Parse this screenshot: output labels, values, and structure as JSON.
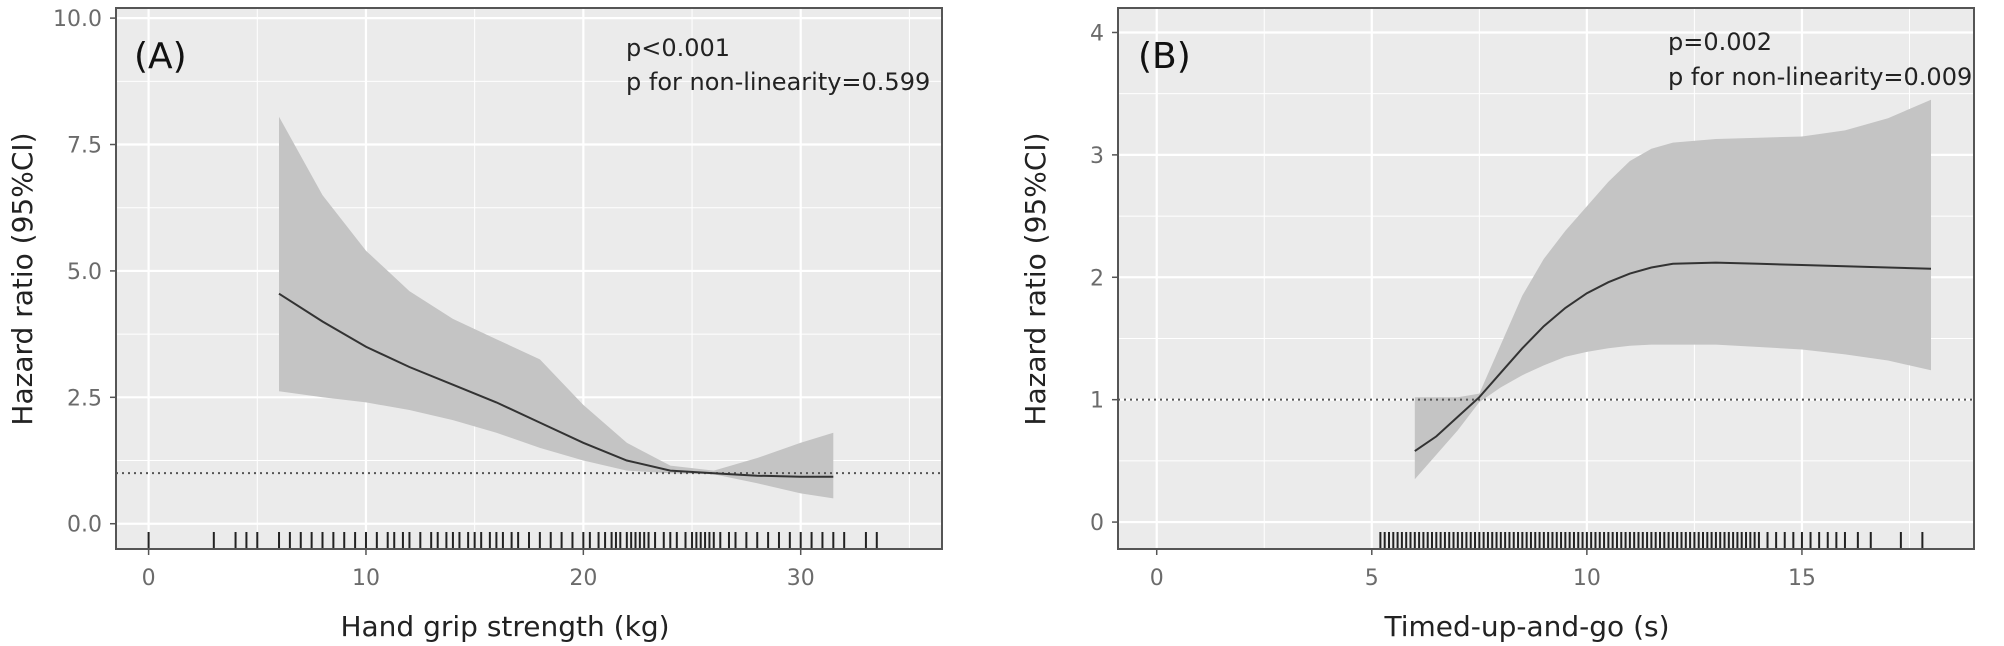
{
  "colors": {
    "panel_bg": "#ebebeb",
    "grid": "#ffffff",
    "ci_band": "#c4c4c4",
    "curve": "#333333",
    "reference_line": "#555555",
    "rug": "#222222",
    "border": "#555555"
  },
  "chart_data": [
    {
      "type": "line",
      "panel_label": "(A)",
      "annotation": [
        "p<0.001",
        "p for non-linearity=0.599"
      ],
      "xlabel": "Hand grip strength (kg)",
      "ylabel": "Hazard ratio (95%CI)",
      "xlim": [
        -1.5,
        36.5
      ],
      "ylim": [
        -0.5,
        10.2
      ],
      "xticks": [
        0,
        10,
        20,
        30
      ],
      "xtick_labels": [
        "0",
        "10",
        "20",
        "30"
      ],
      "yticks": [
        0,
        2.5,
        5,
        7.5,
        10
      ],
      "ytick_labels": [
        "0.0",
        "2.5",
        "5.0",
        "7.5",
        "10.0"
      ],
      "reference_line_y": 1,
      "grid": true,
      "series": [
        {
          "x": [
            6,
            8,
            10,
            12,
            14,
            16,
            18,
            20,
            22,
            24,
            26,
            28,
            30,
            31.5
          ],
          "y": [
            4.55,
            4.0,
            3.5,
            3.1,
            2.75,
            2.4,
            2.0,
            1.6,
            1.25,
            1.05,
            1.0,
            0.95,
            0.93,
            0.93
          ],
          "lower": [
            2.62,
            2.5,
            2.4,
            2.25,
            2.05,
            1.8,
            1.5,
            1.25,
            1.05,
            1.0,
            0.98,
            0.8,
            0.6,
            0.5
          ],
          "upper": [
            8.05,
            6.5,
            5.4,
            4.6,
            4.05,
            3.65,
            3.25,
            2.35,
            1.6,
            1.15,
            1.05,
            1.3,
            1.6,
            1.8
          ]
        }
      ],
      "rug_x": [
        0,
        3,
        4,
        4.5,
        5,
        6,
        6.5,
        7,
        7.5,
        8,
        8.5,
        9,
        9.5,
        10,
        10.5,
        11,
        11.3,
        11.7,
        12,
        12.5,
        13,
        13.3,
        13.7,
        14,
        14.3,
        14.7,
        15,
        15.3,
        15.7,
        16,
        16.3,
        16.7,
        17,
        17.5,
        18,
        18.5,
        19,
        19.5,
        20,
        20.3,
        20.7,
        21,
        21.3,
        21.5,
        21.7,
        22,
        22.2,
        22.4,
        22.6,
        22.8,
        23,
        23.3,
        23.7,
        24,
        24.3,
        24.7,
        25,
        25.2,
        25.4,
        25.6,
        25.8,
        26,
        26.3,
        26.7,
        27,
        27.5,
        28,
        28.5,
        29,
        29.5,
        30,
        30.5,
        31,
        31.5,
        32,
        33,
        33.5
      ]
    },
    {
      "type": "line",
      "panel_label": "(B)",
      "annotation": [
        "p=0.002",
        "p for non-linearity=0.009"
      ],
      "xlabel": "Timed-up-and-go (s)",
      "ylabel": "Hazard ratio (95%CI)",
      "xlim": [
        -0.9,
        19
      ],
      "ylim": [
        -0.22,
        4.2
      ],
      "xticks": [
        0,
        5,
        10,
        15
      ],
      "xtick_labels": [
        "0",
        "5",
        "10",
        "15"
      ],
      "yticks": [
        0,
        1,
        2,
        3,
        4
      ],
      "ytick_labels": [
        "0",
        "1",
        "2",
        "3",
        "4"
      ],
      "reference_line_y": 1,
      "grid": true,
      "series": [
        {
          "x": [
            6,
            6.5,
            7,
            7.5,
            8,
            8.5,
            9,
            9.5,
            10,
            10.5,
            11,
            11.5,
            12,
            13,
            14,
            15,
            16,
            17,
            18
          ],
          "y": [
            0.58,
            0.7,
            0.86,
            1.02,
            1.22,
            1.42,
            1.6,
            1.75,
            1.87,
            1.96,
            2.03,
            2.08,
            2.11,
            2.12,
            2.11,
            2.1,
            2.09,
            2.08,
            2.07
          ],
          "lower": [
            0.35,
            0.55,
            0.75,
            0.98,
            1.1,
            1.2,
            1.28,
            1.35,
            1.39,
            1.42,
            1.44,
            1.45,
            1.45,
            1.45,
            1.43,
            1.41,
            1.37,
            1.32,
            1.24
          ],
          "upper": [
            1.02,
            1.02,
            1.02,
            1.05,
            1.45,
            1.85,
            2.15,
            2.38,
            2.58,
            2.78,
            2.95,
            3.05,
            3.1,
            3.13,
            3.14,
            3.15,
            3.2,
            3.3,
            3.45
          ]
        }
      ],
      "rug_x": [
        5.2,
        5.3,
        5.4,
        5.5,
        5.6,
        5.7,
        5.8,
        5.9,
        6,
        6.1,
        6.2,
        6.3,
        6.4,
        6.5,
        6.6,
        6.7,
        6.8,
        6.9,
        7,
        7.1,
        7.2,
        7.3,
        7.4,
        7.5,
        7.6,
        7.7,
        7.8,
        7.9,
        8,
        8.1,
        8.2,
        8.3,
        8.4,
        8.5,
        8.6,
        8.7,
        8.8,
        8.9,
        9,
        9.1,
        9.2,
        9.3,
        9.4,
        9.5,
        9.6,
        9.7,
        9.8,
        9.9,
        10,
        10.1,
        10.2,
        10.3,
        10.4,
        10.5,
        10.6,
        10.7,
        10.8,
        10.9,
        11,
        11.1,
        11.2,
        11.3,
        11.4,
        11.5,
        11.6,
        11.7,
        11.8,
        11.9,
        12,
        12.1,
        12.2,
        12.3,
        12.4,
        12.5,
        12.6,
        12.7,
        12.8,
        12.9,
        13,
        13.1,
        13.2,
        13.3,
        13.4,
        13.5,
        13.6,
        13.7,
        13.8,
        13.9,
        14,
        14.2,
        14.4,
        14.6,
        14.8,
        15,
        15.2,
        15.4,
        15.6,
        15.8,
        16,
        16.3,
        16.6,
        17.3,
        17.8
      ]
    }
  ]
}
